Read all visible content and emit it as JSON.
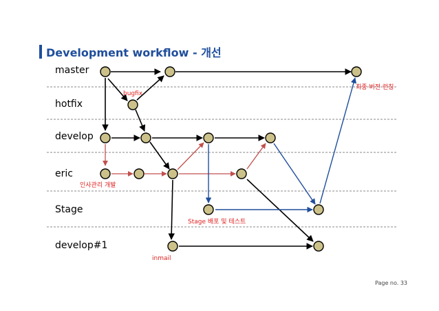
{
  "title": "Development workflow - 개선",
  "lanes": [
    {
      "id": "master",
      "label": "master"
    },
    {
      "id": "hotfix",
      "label": "hotfix"
    },
    {
      "id": "develop",
      "label": "develop"
    },
    {
      "id": "eric",
      "label": "eric"
    },
    {
      "id": "stage",
      "label": "Stage"
    },
    {
      "id": "develop1",
      "label": "develop#1"
    }
  ],
  "annotations": {
    "bugfix": "bugfix",
    "release": "최종 버전 런칭",
    "eric_feature": "인사관리 개발",
    "stage_test": "Stage 배포 및 테스트",
    "inmail": "inmail"
  },
  "page_number": "Page no. 33",
  "colors": {
    "title": "#1f4e9c",
    "black_arrow": "#000000",
    "red_arrow": "#c0504d",
    "blue_arrow": "#1f4e9c",
    "node_fill": "#ccc289",
    "annotation": "#e02020"
  }
}
